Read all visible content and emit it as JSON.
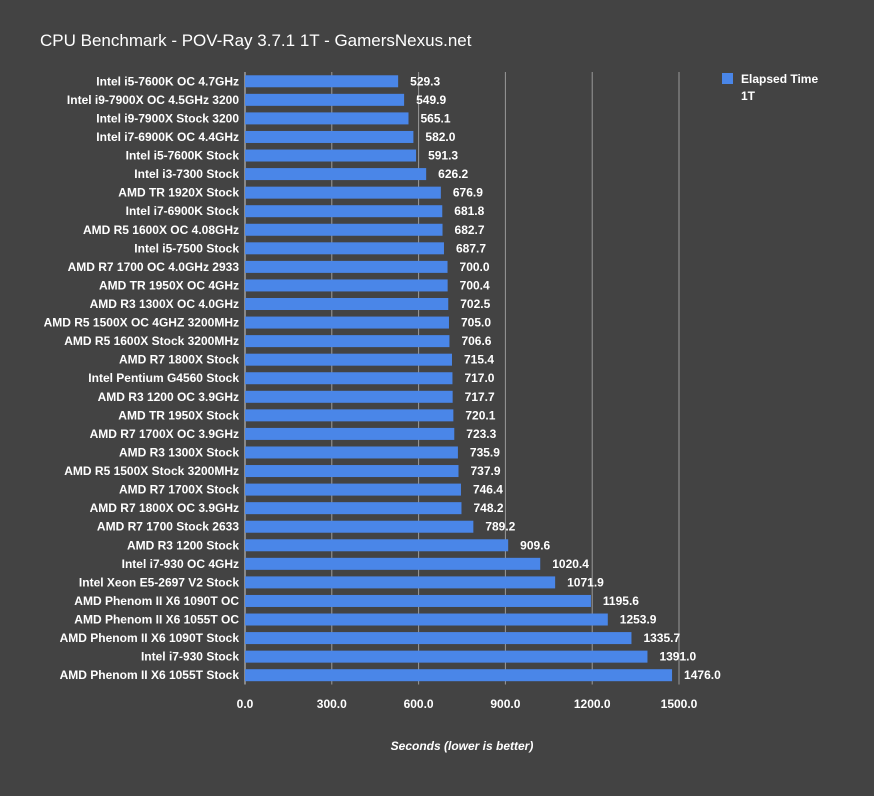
{
  "chart_data": {
    "type": "bar",
    "orientation": "horizontal",
    "title": "CPU Benchmark - POV-Ray 3.7.1 1T - GamersNexus.net",
    "xlabel": "Seconds (lower is better)",
    "ylabel": "",
    "xlim": [
      0,
      1500
    ],
    "xticks": [
      "0.0",
      "300.0",
      "600.0",
      "900.0",
      "1200.0",
      "1500.0"
    ],
    "grid": true,
    "legend_position": "top-right",
    "bar_color": "#4a86e8",
    "series": [
      {
        "name": "Elapsed Time",
        "name_line2": "1T"
      }
    ],
    "categories": [
      "Intel i5-7600K OC 4.7GHz",
      "Intel i9-7900X OC 4.5GHz 3200",
      "Intel i9-7900X Stock 3200",
      "Intel i7-6900K OC 4.4GHz",
      "Intel i5-7600K Stock",
      "Intel i3-7300 Stock",
      "AMD TR 1920X Stock",
      "Intel i7-6900K Stock",
      "AMD R5 1600X OC 4.08GHz",
      "Intel i5-7500 Stock",
      "AMD R7 1700 OC 4.0GHz 2933",
      "AMD TR 1950X OC 4GHz",
      "AMD R3 1300X OC 4.0GHz",
      "AMD R5 1500X OC 4GHZ 3200MHz",
      "AMD R5 1600X Stock 3200MHz",
      "AMD R7 1800X Stock",
      "Intel Pentium G4560 Stock",
      "AMD R3 1200 OC 3.9GHz",
      "AMD TR 1950X Stock",
      "AMD R7 1700X OC 3.9GHz",
      "AMD R3 1300X Stock",
      "AMD R5 1500X Stock 3200MHz",
      "AMD R7 1700X Stock",
      "AMD R7 1800X OC 3.9GHz",
      "AMD R7 1700 Stock 2633",
      "AMD R3 1200 Stock",
      "Intel i7-930 OC 4GHz",
      "Intel Xeon E5-2697 V2 Stock",
      "AMD Phenom II X6 1090T OC",
      "AMD Phenom II X6 1055T OC",
      "AMD Phenom II X6 1090T Stock",
      "Intel i7-930 Stock",
      "AMD Phenom II X6 1055T Stock"
    ],
    "values": [
      529.3,
      549.9,
      565.1,
      582.0,
      591.3,
      626.2,
      676.9,
      681.8,
      682.7,
      687.7,
      700.0,
      700.4,
      702.5,
      705.0,
      706.6,
      715.4,
      717.0,
      717.7,
      720.1,
      723.3,
      735.9,
      737.9,
      746.4,
      748.2,
      789.2,
      909.6,
      1020.4,
      1071.9,
      1195.6,
      1253.9,
      1335.7,
      1391.0,
      1476.0
    ],
    "value_labels": [
      "529.3",
      "549.9",
      "565.1",
      "582.0",
      "591.3",
      "626.2",
      "676.9",
      "681.8",
      "682.7",
      "687.7",
      "700.0",
      "700.4",
      "702.5",
      "705.0",
      "706.6",
      "715.4",
      "717.0",
      "717.7",
      "720.1",
      "723.3",
      "735.9",
      "737.9",
      "746.4",
      "748.2",
      "789.2",
      "909.6",
      "1020.4",
      "1071.9",
      "1195.6",
      "1253.9",
      "1335.7",
      "1391.0",
      "1476.0"
    ]
  }
}
